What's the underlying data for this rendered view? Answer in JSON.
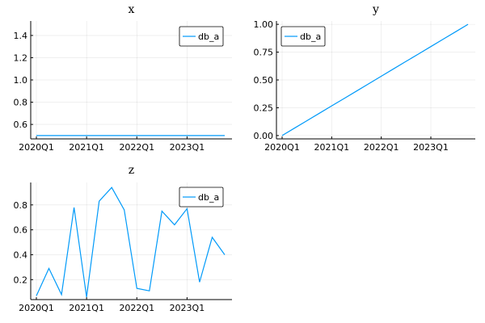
{
  "chart_data": [
    {
      "type": "line",
      "title": "x",
      "x_ticks": [
        "2020Q1",
        "2021Q1",
        "2022Q1",
        "2023Q1"
      ],
      "ylim": [
        0.47,
        1.53
      ],
      "y_ticks": [
        "0.6",
        "0.8",
        "1.0",
        "1.2",
        "1.4"
      ],
      "y_tick_values": [
        0.6,
        0.8,
        1.0,
        1.2,
        1.4
      ],
      "legend_position": "top-right",
      "grid": true,
      "series": [
        {
          "name": "db_a",
          "color": "#009af9",
          "values": [
            0.5,
            0.5,
            0.5,
            0.5,
            0.5,
            0.5,
            0.5,
            0.5,
            0.5,
            0.5,
            0.5,
            0.5,
            0.5,
            0.5,
            0.5,
            0.5
          ]
        }
      ]
    },
    {
      "type": "line",
      "title": "y",
      "x_ticks": [
        "2020Q1",
        "2021Q1",
        "2022Q1",
        "2023Q1"
      ],
      "ylim": [
        -0.03,
        1.03
      ],
      "y_ticks": [
        "0.00",
        "0.25",
        "0.50",
        "0.75",
        "1.00"
      ],
      "y_tick_values": [
        0,
        0.25,
        0.5,
        0.75,
        1.0
      ],
      "legend_position": "top-left",
      "grid": true,
      "series": [
        {
          "name": "db_a",
          "color": "#009af9",
          "values": [
            0,
            0.0667,
            0.1333,
            0.2,
            0.2667,
            0.3333,
            0.4,
            0.4667,
            0.5333,
            0.6,
            0.6667,
            0.7333,
            0.8,
            0.8667,
            0.9333,
            1.0
          ]
        }
      ]
    },
    {
      "type": "line",
      "title": "z",
      "x_ticks": [
        "2020Q1",
        "2021Q1",
        "2022Q1",
        "2023Q1"
      ],
      "ylim": [
        0.04,
        0.98
      ],
      "y_ticks": [
        "0.2",
        "0.4",
        "0.6",
        "0.8"
      ],
      "y_tick_values": [
        0.2,
        0.4,
        0.6,
        0.8
      ],
      "legend_position": "top-right",
      "grid": true,
      "series": [
        {
          "name": "db_a",
          "color": "#009af9",
          "values": [
            0.07,
            0.29,
            0.08,
            0.78,
            0.06,
            0.83,
            0.94,
            0.76,
            0.13,
            0.11,
            0.75,
            0.64,
            0.77,
            0.18,
            0.54,
            0.4
          ]
        }
      ]
    }
  ]
}
